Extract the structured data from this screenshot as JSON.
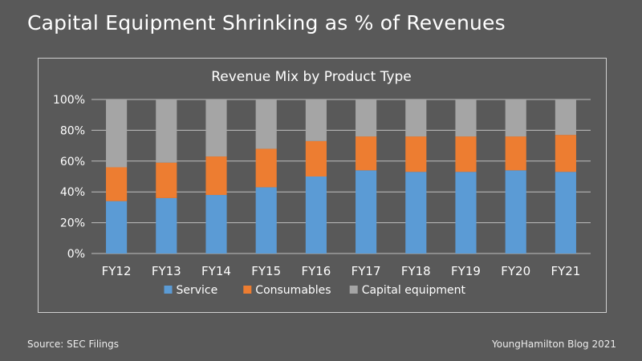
{
  "slide": {
    "title": "Capital Equipment Shrinking as % of Revenues",
    "source": "Source: SEC Filings",
    "credit": "YoungHamilton Blog 2021"
  },
  "chart_data": {
    "type": "bar",
    "stacked": true,
    "normalized": true,
    "title": "Revenue Mix by Product Type",
    "xlabel": "",
    "ylabel": "",
    "ylim": [
      0,
      100
    ],
    "yticks": [
      "0%",
      "20%",
      "40%",
      "60%",
      "80%",
      "100%"
    ],
    "grid": true,
    "legend_position": "bottom",
    "categories": [
      "FY12",
      "FY13",
      "FY14",
      "FY15",
      "FY16",
      "FY17",
      "FY18",
      "FY19",
      "FY20",
      "FY21"
    ],
    "series": [
      {
        "name": "Service",
        "color": "#5b9bd5",
        "values": [
          34,
          36,
          38,
          43,
          50,
          54,
          53,
          53,
          54,
          53
        ]
      },
      {
        "name": "Consumables",
        "color": "#ed7d31",
        "values": [
          22,
          23,
          25,
          25,
          23,
          22,
          23,
          23,
          22,
          24
        ]
      },
      {
        "name": "Capital equipment",
        "color": "#a5a5a5",
        "values": [
          44,
          41,
          37,
          32,
          27,
          24,
          24,
          24,
          24,
          23
        ]
      }
    ]
  }
}
